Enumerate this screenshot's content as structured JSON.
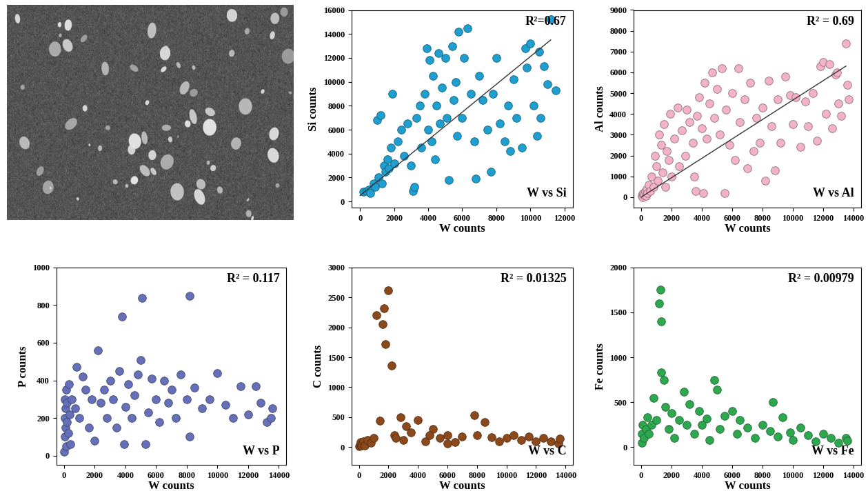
{
  "chart_data": [
    {
      "type": "scatter",
      "xlabel": "W counts",
      "ylabel": "Si counts",
      "annotations": [
        "R²=0.67",
        "W vs Si"
      ],
      "xlim": [
        -500,
        12500
      ],
      "xticks": [
        0,
        2000,
        4000,
        6000,
        8000,
        10000,
        12000
      ],
      "ylim": [
        -500,
        16000
      ],
      "yticks": [
        0,
        2000,
        4000,
        6000,
        8000,
        10000,
        12000,
        14000,
        16000
      ],
      "series": [
        {
          "type": "scatter",
          "marker": "o",
          "color": "#1f9fd0",
          "x": [
            200,
            400,
            500,
            600,
            800,
            900,
            1000,
            1100,
            1200,
            1300,
            1400,
            1500,
            1600,
            1700,
            1800,
            1900,
            2000,
            2200,
            2400,
            2600,
            2800,
            3000,
            3100,
            3200,
            3300,
            3500,
            3600,
            3800,
            3900,
            4000,
            4100,
            4200,
            4300,
            4400,
            4500,
            4600,
            4700,
            4800,
            5000,
            5100,
            5200,
            5400,
            5500,
            5600,
            5700,
            5800,
            6000,
            6100,
            6300,
            6500,
            6700,
            6800,
            7000,
            7200,
            7500,
            7700,
            7800,
            8000,
            8200,
            8500,
            8700,
            9000,
            9200,
            9500,
            9700,
            10000,
            10200,
            10400,
            10600,
            10800,
            11000,
            11200,
            11500,
            10500,
            9800,
            8800
          ],
          "values": [
            800,
            900,
            1000,
            700,
            1500,
            1200,
            6800,
            2000,
            7200,
            1500,
            3000,
            2500,
            3500,
            2800,
            4500,
            9000,
            3200,
            5000,
            6000,
            3800,
            6500,
            3000,
            900,
            1200,
            7000,
            8000,
            4500,
            9000,
            12800,
            6000,
            11800,
            5000,
            10500,
            3500,
            8000,
            12400,
            6500,
            9500,
            12000,
            7000,
            1800,
            13000,
            8500,
            10000,
            5500,
            14200,
            7000,
            12000,
            14500,
            9000,
            5000,
            1900,
            10500,
            8500,
            6000,
            2500,
            9000,
            12000,
            6500,
            5000,
            8000,
            10200,
            7000,
            4500,
            12800,
            13200,
            8000,
            5500,
            7000,
            11300,
            9800,
            15200,
            9300,
            12500,
            11200,
            4200
          ]
        },
        {
          "type": "line",
          "color": "#333333",
          "x": [
            0,
            11200
          ],
          "values": [
            500,
            13500
          ]
        }
      ]
    },
    {
      "type": "scatter",
      "xlabel": "W counts",
      "ylabel": "Al counts",
      "annotations": [
        "R² = 0.69",
        "W vs Al"
      ],
      "xlim": [
        -500,
        14500
      ],
      "xticks": [
        0,
        2000,
        4000,
        6000,
        8000,
        10000,
        12000,
        14000
      ],
      "ylim": [
        -500,
        9000
      ],
      "yticks": [
        0,
        1000,
        2000,
        3000,
        4000,
        5000,
        6000,
        7000,
        8000,
        9000
      ],
      "series": [
        {
          "type": "scatter",
          "marker": "o",
          "color": "#f2b3c9",
          "x": [
            50,
            80,
            100,
            150,
            200,
            250,
            300,
            350,
            400,
            500,
            600,
            700,
            800,
            900,
            1000,
            1100,
            1200,
            1300,
            1400,
            1500,
            1600,
            1700,
            1800,
            1900,
            2000,
            2200,
            2400,
            2500,
            2700,
            2900,
            3000,
            3200,
            3400,
            3500,
            3600,
            3700,
            3800,
            4000,
            4100,
            4200,
            4300,
            4500,
            4700,
            4800,
            5000,
            5200,
            5300,
            5500,
            5600,
            5800,
            6000,
            6200,
            6400,
            6500,
            6800,
            7000,
            7200,
            7400,
            7600,
            7800,
            8000,
            8200,
            8400,
            8600,
            8800,
            9000,
            9200,
            9500,
            9800,
            10000,
            10200,
            10500,
            10800,
            11000,
            11300,
            11600,
            11800,
            12000,
            12200,
            12400,
            12600,
            12800,
            13000,
            13200,
            13500,
            13600,
            13700,
            12900
          ],
          "values": [
            50,
            150,
            0,
            200,
            100,
            300,
            50,
            400,
            200,
            600,
            300,
            1000,
            500,
            2000,
            1500,
            800,
            3000,
            2500,
            1200,
            3500,
            500,
            2200,
            1800,
            4000,
            1000,
            2800,
            4300,
            1500,
            3200,
            2000,
            4200,
            3600,
            2600,
            1000,
            300,
            3900,
            4800,
            3300,
            200,
            5500,
            2800,
            4500,
            6000,
            3800,
            5200,
            3000,
            6200,
            200,
            4200,
            2500,
            5000,
            1800,
            6200,
            3600,
            4700,
            1400,
            5500,
            2200,
            3800,
            2600,
            4300,
            800,
            5600,
            3400,
            1300,
            4700,
            2600,
            5800,
            4900,
            3500,
            4800,
            2400,
            4600,
            3400,
            5000,
            2700,
            6300,
            6500,
            4000,
            6400,
            3300,
            5900,
            4500,
            3900,
            7400,
            5400,
            4700,
            6000
          ]
        },
        {
          "type": "line",
          "color": "#333333",
          "x": [
            0,
            13500
          ],
          "values": [
            0,
            6300
          ]
        }
      ]
    },
    {
      "type": "scatter",
      "xlabel": "W counts",
      "ylabel": "P counts",
      "annotations": [
        "R² = 0.117",
        "W vs P"
      ],
      "xlim": [
        -500,
        14500
      ],
      "xticks": [
        0,
        2000,
        4000,
        6000,
        8000,
        10000,
        12000,
        14000
      ],
      "ylim": [
        -50,
        1000
      ],
      "yticks": [
        0,
        200,
        400,
        600,
        800,
        1000
      ],
      "series": [
        {
          "type": "scatter",
          "marker": "o",
          "color": "#6670b8",
          "x": [
            20,
            30,
            50,
            60,
            80,
            100,
            120,
            150,
            180,
            200,
            250,
            300,
            350,
            400,
            500,
            700,
            800,
            1000,
            1200,
            1400,
            1600,
            1800,
            2000,
            2200,
            2400,
            2600,
            2800,
            3000,
            3200,
            3400,
            3600,
            3800,
            3900,
            4000,
            4200,
            4400,
            4600,
            4800,
            5000,
            5100,
            5300,
            5500,
            5700,
            6000,
            6200,
            6500,
            6800,
            7000,
            7300,
            7600,
            8000,
            8200,
            8200,
            8500,
            9000,
            9500,
            10000,
            10500,
            11000,
            11500,
            12000,
            12500,
            12800,
            13200,
            13600,
            13500
          ],
          "values": [
            20,
            100,
            200,
            300,
            150,
            250,
            50,
            350,
            180,
            280,
            120,
            380,
            220,
            60,
            300,
            250,
            470,
            200,
            420,
            350,
            150,
            300,
            80,
            560,
            280,
            350,
            200,
            400,
            300,
            150,
            450,
            740,
            60,
            260,
            380,
            200,
            320,
            430,
            510,
            840,
            60,
            230,
            410,
            300,
            180,
            400,
            280,
            350,
            200,
            430,
            300,
            850,
            100,
            360,
            250,
            300,
            440,
            270,
            200,
            370,
            220,
            370,
            280,
            180,
            250,
            200
          ]
        }
      ]
    },
    {
      "type": "scatter",
      "xlabel": "W counts",
      "ylabel": "C counts",
      "annotations": [
        "R² = 0.01325",
        "W vs C"
      ],
      "xlim": [
        -500,
        14500
      ],
      "xticks": [
        0,
        2000,
        4000,
        6000,
        8000,
        10000,
        12000,
        14000
      ],
      "ylim": [
        -300,
        3000
      ],
      "yticks": [
        0,
        500,
        1000,
        1500,
        2000,
        2500,
        3000
      ],
      "series": [
        {
          "type": "scatter",
          "marker": "o",
          "color": "#8c4a1c",
          "x": [
            20,
            50,
            100,
            150,
            200,
            300,
            400,
            600,
            800,
            1000,
            1200,
            1400,
            1600,
            1700,
            1800,
            2000,
            2200,
            2400,
            2800,
            3000,
            3500,
            4000,
            4500,
            5000,
            5500,
            6000,
            6500,
            7000,
            7800,
            8000,
            8500,
            9000,
            9500,
            10000,
            10500,
            11000,
            11500,
            12000,
            12500,
            13000,
            13500,
            13600,
            2500,
            3200,
            4800,
            6000
          ],
          "values": [
            10,
            40,
            80,
            20,
            60,
            100,
            30,
            120,
            70,
            150,
            2200,
            440,
            2050,
            2320,
            1720,
            2620,
            1360,
            200,
            500,
            120,
            250,
            450,
            100,
            300,
            150,
            200,
            80,
            180,
            530,
            200,
            420,
            160,
            100,
            150,
            200,
            120,
            180,
            90,
            150,
            100,
            60,
            140,
            150,
            350,
            200,
            60
          ]
        }
      ]
    },
    {
      "type": "scatter",
      "xlabel": "W counts",
      "ylabel": "Fe counts",
      "annotations": [
        "R² = 0.00979",
        "W vs Fe"
      ],
      "xlim": [
        -500,
        14500
      ],
      "xticks": [
        0,
        2000,
        4000,
        6000,
        8000,
        10000,
        12000,
        14000
      ],
      "ylim": [
        -200,
        2000
      ],
      "yticks": [
        0,
        500,
        1000,
        1500,
        2000
      ],
      "series": [
        {
          "type": "scatter",
          "marker": "o",
          "color": "#2ea84f",
          "x": [
            20,
            50,
            100,
            200,
            300,
            400,
            500,
            700,
            800,
            1000,
            1200,
            1250,
            1300,
            1300,
            1500,
            1600,
            1800,
            2000,
            2200,
            2500,
            2800,
            3000,
            3200,
            3500,
            3800,
            4000,
            4300,
            4500,
            4800,
            5000,
            5200,
            5500,
            6000,
            6300,
            6500,
            7000,
            7500,
            8000,
            8500,
            8700,
            9000,
            9300,
            9800,
            10000,
            10500,
            11000,
            11500,
            12000,
            12500,
            13000,
            13500,
            13600
          ],
          "values": [
            50,
            150,
            250,
            100,
            200,
            330,
            150,
            250,
            550,
            300,
            1600,
            1750,
            1400,
            830,
            750,
            450,
            200,
            380,
            100,
            300,
            620,
            250,
            480,
            150,
            400,
            250,
            320,
            80,
            750,
            640,
            200,
            350,
            400,
            150,
            300,
            220,
            100,
            250,
            180,
            500,
            120,
            330,
            160,
            80,
            220,
            130,
            60,
            150,
            100,
            50,
            100,
            70
          ]
        }
      ]
    }
  ]
}
